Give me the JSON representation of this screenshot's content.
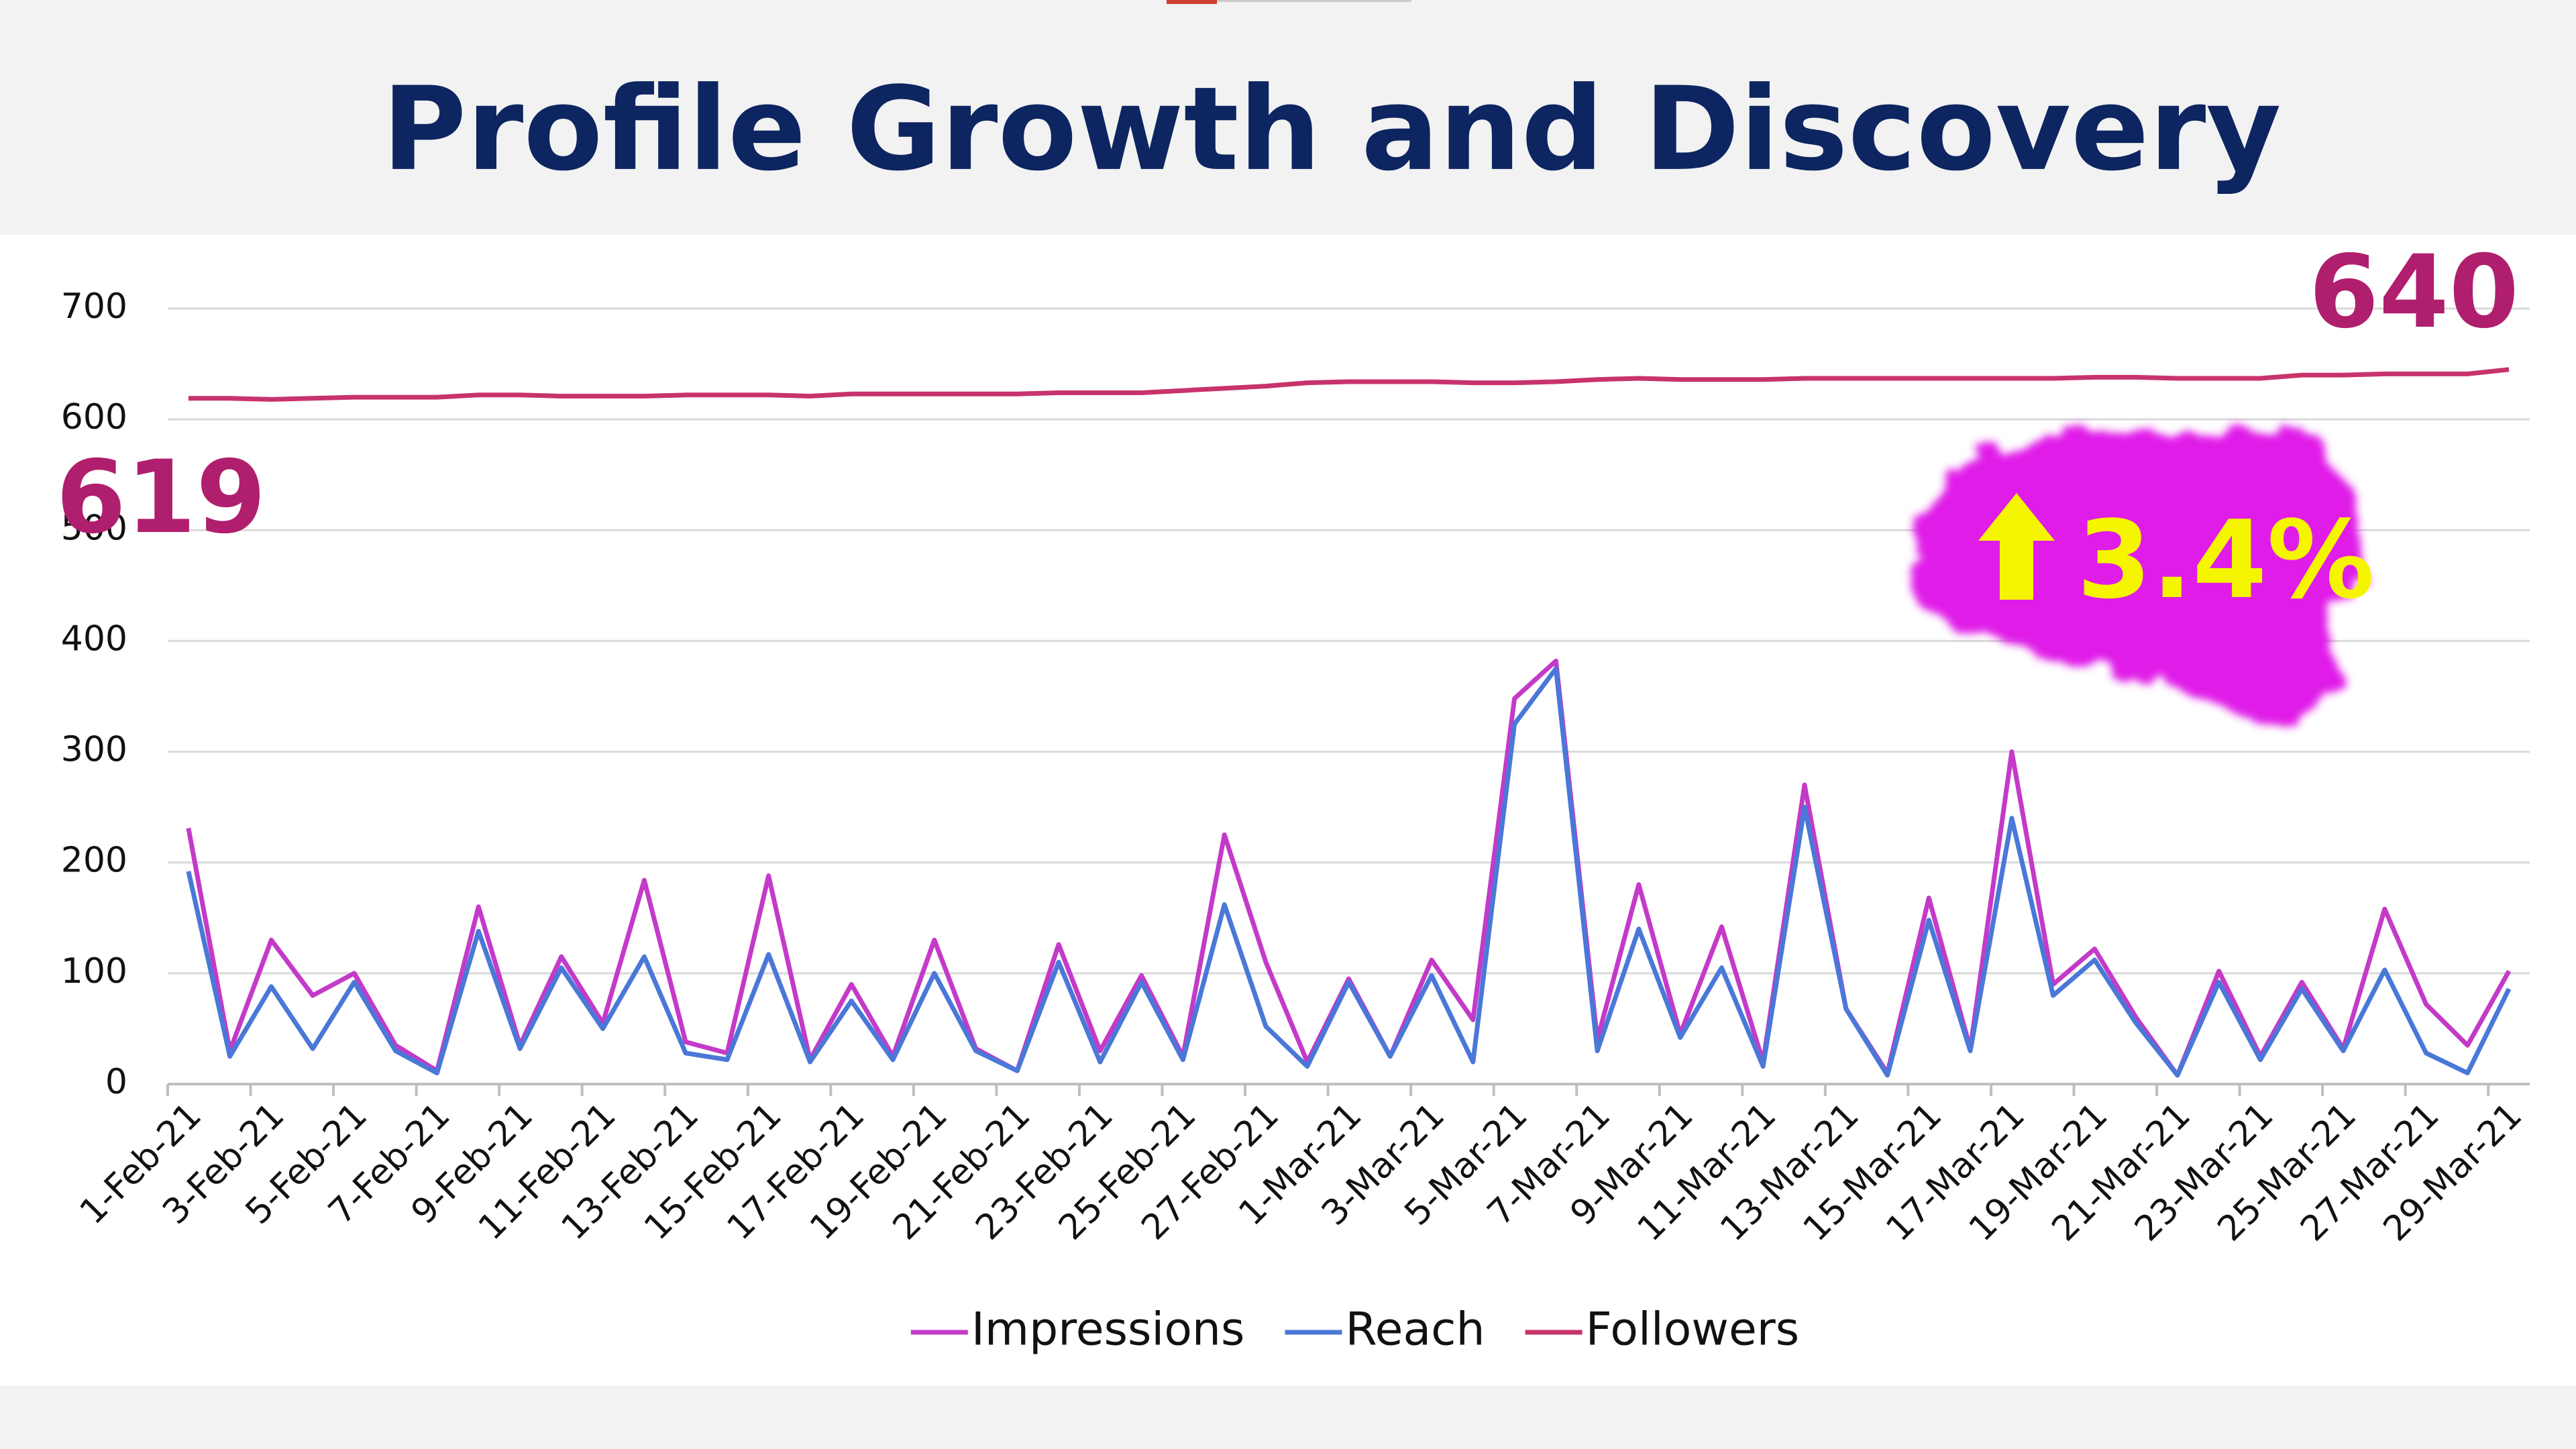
{
  "chart_data": {
    "type": "line",
    "title": "Profile Growth and Discovery",
    "categories": [
      "1-Feb-21",
      null,
      "3-Feb-21",
      null,
      "5-Feb-21",
      null,
      "7-Feb-21",
      null,
      "9-Feb-21",
      null,
      "11-Feb-21",
      null,
      "13-Feb-21",
      null,
      "15-Feb-21",
      null,
      "17-Feb-21",
      null,
      "19-Feb-21",
      null,
      "21-Feb-21",
      null,
      "23-Feb-21",
      null,
      "25-Feb-21",
      null,
      "27-Feb-21",
      null,
      "1-Mar-21",
      null,
      "3-Mar-21",
      null,
      "5-Mar-21",
      null,
      "7-Mar-21",
      null,
      "9-Mar-21",
      null,
      "11-Mar-21",
      null,
      "13-Mar-21",
      null,
      "15-Mar-21",
      null,
      "17-Mar-21",
      null,
      "19-Mar-21",
      null,
      "21-Mar-21",
      null,
      "23-Mar-21",
      null,
      "25-Mar-21",
      null,
      "27-Mar-21",
      null,
      "29-Mar-21"
    ],
    "series": [
      {
        "name": "Impressions",
        "color": "#c43ac8",
        "values": [
          231,
          30,
          130,
          80,
          100,
          35,
          12,
          160,
          35,
          115,
          55,
          184,
          38,
          28,
          188,
          22,
          90,
          25,
          130,
          32,
          12,
          126,
          30,
          98,
          25,
          225,
          110,
          20,
          95,
          25,
          112,
          58,
          348,
          382,
          40,
          180,
          45,
          142,
          20,
          270,
          68,
          10,
          168,
          32,
          300,
          90,
          122,
          60,
          8,
          102,
          25,
          92,
          32,
          158,
          72,
          35,
          102
        ]
      },
      {
        "name": "Reach",
        "color": "#4a78d8",
        "values": [
          192,
          25,
          88,
          32,
          92,
          30,
          10,
          138,
          32,
          105,
          50,
          115,
          28,
          22,
          117,
          20,
          75,
          22,
          100,
          30,
          12,
          110,
          20,
          92,
          22,
          162,
          52,
          16,
          92,
          25,
          98,
          20,
          325,
          375,
          30,
          140,
          42,
          105,
          16,
          250,
          68,
          8,
          148,
          30,
          240,
          80,
          112,
          55,
          8,
          92,
          22,
          86,
          30,
          103,
          28,
          10,
          86
        ]
      },
      {
        "name": "Followers",
        "color": "#c8336b",
        "values": [
          619,
          619,
          618,
          619,
          620,
          620,
          620,
          622,
          622,
          621,
          621,
          621,
          622,
          622,
          622,
          621,
          623,
          623,
          623,
          623,
          623,
          624,
          624,
          624,
          626,
          628,
          630,
          633,
          634,
          634,
          634,
          633,
          633,
          634,
          636,
          637,
          636,
          636,
          636,
          637,
          637,
          637,
          637,
          637,
          637,
          637,
          638,
          638,
          637,
          637,
          637,
          640,
          640,
          641,
          641,
          641,
          645
        ]
      }
    ],
    "ylim": [
      0,
      700
    ],
    "yticks": [
      0,
      100,
      200,
      300,
      400,
      500,
      600,
      700
    ],
    "grid": true,
    "legend": "bottom",
    "annotations": [
      {
        "text": "619"
      },
      {
        "text": "640"
      },
      {
        "text": "3.4%"
      }
    ]
  }
}
